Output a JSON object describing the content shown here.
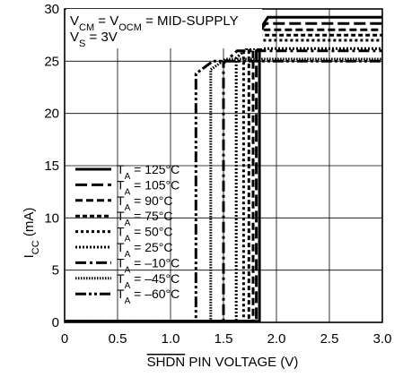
{
  "chart_data": {
    "type": "line",
    "xlabel": "SHDN PIN VOLTAGE (V)",
    "xlabel_overline_part": "SHDN",
    "xlabel_rest": " PIN VOLTAGE (V)",
    "ylabel_main": "I",
    "ylabel_sub": "CC",
    "ylabel_unit": " (mA)",
    "xlim": [
      0,
      3.0
    ],
    "ylim": [
      0,
      30
    ],
    "xticks": [
      0,
      0.5,
      1.0,
      1.5,
      2.0,
      2.5,
      3.0
    ],
    "xtick_labels": [
      "0",
      "0.5",
      "1.0",
      "1.5",
      "2.0",
      "2.5",
      "3.0"
    ],
    "yticks": [
      0,
      5,
      10,
      15,
      20,
      25,
      30
    ],
    "ytick_labels": [
      "0",
      "5",
      "10",
      "15",
      "20",
      "25",
      "30"
    ],
    "grid": true,
    "legend_position": "left",
    "annotation_line1": {
      "v": "V",
      "cm": "CM",
      "eq": " = V",
      "ocm": "OCM",
      "rest": " = MID-SUPPLY"
    },
    "annotation_line2": {
      "v": "V",
      "s": "S",
      "rest": " = 3V"
    },
    "series": [
      {
        "name": "125°C",
        "dash": "solid",
        "threshold": 1.84,
        "knee": 1.92,
        "plateau": 29.2,
        "values": [
          [
            0,
            0.1
          ],
          [
            1.84,
            0.1
          ],
          [
            1.84,
            28.0
          ],
          [
            1.92,
            29.2
          ],
          [
            3.0,
            29.2
          ]
        ]
      },
      {
        "name": "105°C",
        "dash": "longdash",
        "threshold": 1.81,
        "knee": 1.9,
        "plateau": 28.6,
        "values": [
          [
            0,
            0.1
          ],
          [
            1.81,
            0.1
          ],
          [
            1.81,
            27.5
          ],
          [
            1.9,
            28.6
          ],
          [
            3.0,
            28.6
          ]
        ]
      },
      {
        "name": "90°C",
        "dash": "dash",
        "threshold": 1.78,
        "knee": 1.88,
        "plateau": 28.0,
        "values": [
          [
            0,
            0.1
          ],
          [
            1.78,
            0.1
          ],
          [
            1.78,
            27.0
          ],
          [
            1.88,
            28.0
          ],
          [
            3.0,
            28.0
          ]
        ]
      },
      {
        "name": "75°C",
        "dash": "shortdash",
        "threshold": 1.74,
        "knee": 1.85,
        "plateau": 27.5,
        "values": [
          [
            0,
            0.1
          ],
          [
            1.74,
            0.1
          ],
          [
            1.74,
            26.6
          ],
          [
            1.85,
            27.5
          ],
          [
            3.0,
            27.5
          ]
        ]
      },
      {
        "name": "50°C",
        "dash": "dotdash",
        "threshold": 1.69,
        "knee": 1.8,
        "plateau": 27.0,
        "values": [
          [
            0,
            0.1
          ],
          [
            1.69,
            0.1
          ],
          [
            1.69,
            26.0
          ],
          [
            1.8,
            27.0
          ],
          [
            3.0,
            27.0
          ]
        ]
      },
      {
        "name": "25°C",
        "dash": "dotted",
        "threshold": 1.62,
        "knee": 1.72,
        "plateau": 26.2,
        "values": [
          [
            0,
            0.1
          ],
          [
            1.62,
            0.1
          ],
          [
            1.62,
            25.3
          ],
          [
            1.72,
            26.2
          ],
          [
            3.0,
            26.2
          ]
        ]
      },
      {
        "name": "–10°C",
        "dash": "dashdot",
        "threshold": 1.5,
        "knee": 1.63,
        "plateau": 26.0,
        "values": [
          [
            0,
            0.1
          ],
          [
            1.5,
            0.1
          ],
          [
            1.5,
            24.8
          ],
          [
            1.63,
            26.0
          ],
          [
            3.0,
            26.0
          ]
        ]
      },
      {
        "name": "–45°C",
        "dash": "finedot",
        "threshold": 1.38,
        "knee": 1.52,
        "plateau": 25.2,
        "values": [
          [
            0,
            0.1
          ],
          [
            1.38,
            0.1
          ],
          [
            1.38,
            24.2
          ],
          [
            1.52,
            25.2
          ],
          [
            3.0,
            25.2
          ]
        ]
      },
      {
        "name": "–60°C",
        "dash": "dashdotdot",
        "threshold": 1.24,
        "knee": 1.4,
        "plateau": 25.0,
        "values": [
          [
            0,
            0.1
          ],
          [
            1.24,
            0.1
          ],
          [
            1.24,
            23.8
          ],
          [
            1.4,
            25.0
          ],
          [
            3.0,
            25.0
          ]
        ]
      }
    ],
    "legend_prefix_main": "T",
    "legend_prefix_sub": "A",
    "legend_eq": " = "
  }
}
